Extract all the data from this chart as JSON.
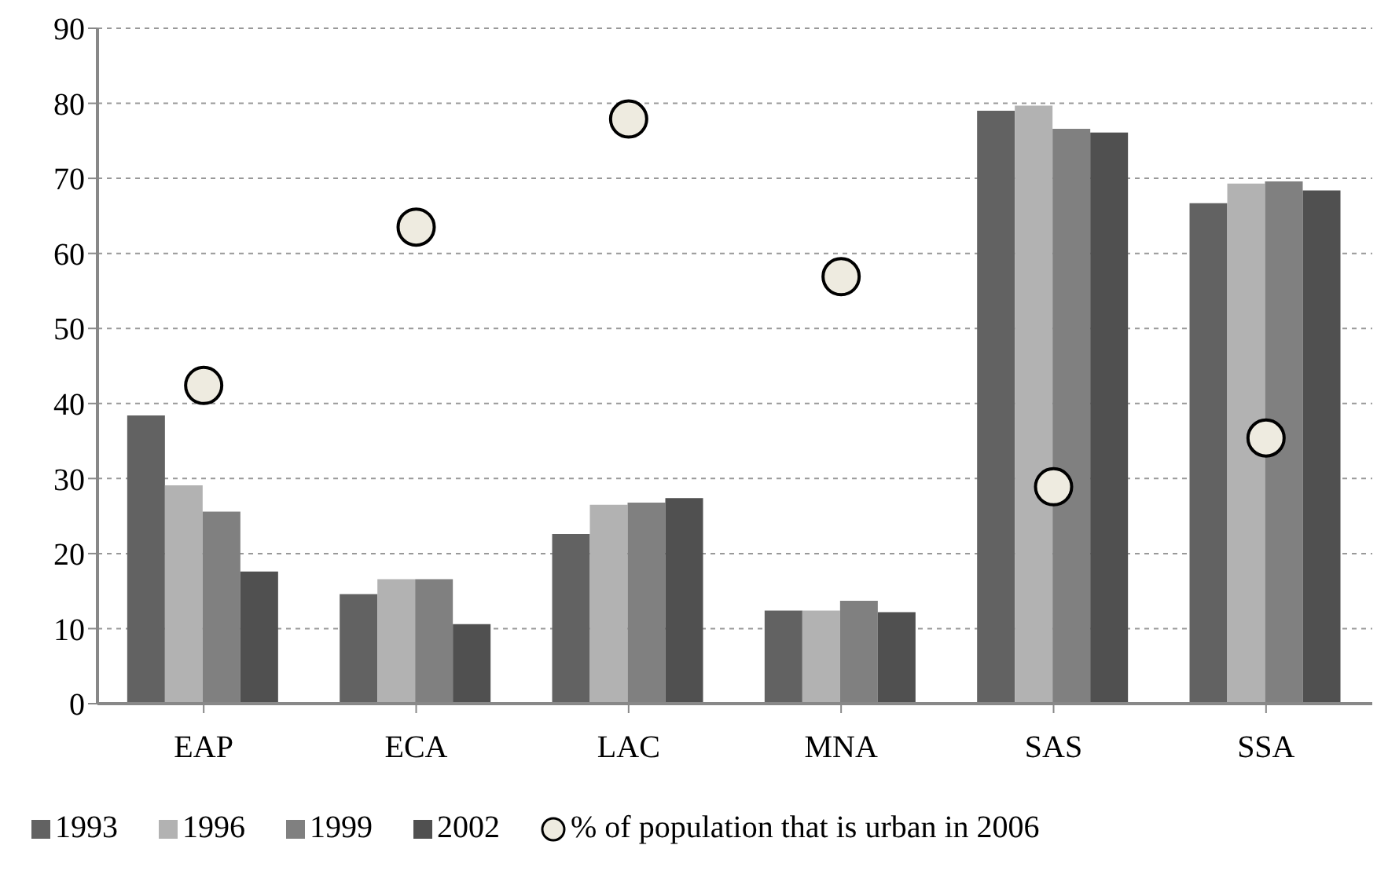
{
  "chart_data": {
    "type": "bar",
    "categories": [
      "EAP",
      "ECA",
      "LAC",
      "MNA",
      "SAS",
      "SSA"
    ],
    "series": [
      {
        "name": "1993",
        "color": "#626262",
        "values": [
          38.4,
          14.6,
          22.6,
          12.4,
          79.0,
          66.7
        ]
      },
      {
        "name": "1996",
        "color": "#b2b2b2",
        "values": [
          29.1,
          16.6,
          26.5,
          12.4,
          79.7,
          69.3
        ]
      },
      {
        "name": "1999",
        "color": "#808080",
        "values": [
          25.6,
          16.6,
          26.8,
          13.7,
          76.6,
          69.6
        ]
      },
      {
        "name": "2002",
        "color": "#505050",
        "values": [
          17.6,
          10.6,
          27.4,
          12.2,
          76.1,
          68.4
        ]
      },
      {
        "name": "% of population that is urban in 2006",
        "type": "scatter",
        "color": "#eeebe0",
        "marker": "circle",
        "values": [
          42.4,
          63.5,
          77.9,
          56.9,
          28.9,
          35.4
        ]
      }
    ],
    "ylim": [
      0,
      90
    ],
    "yticks": [
      0,
      10,
      20,
      30,
      40,
      50,
      60,
      70,
      80,
      90
    ],
    "grid": "y",
    "legend": "bottom"
  }
}
